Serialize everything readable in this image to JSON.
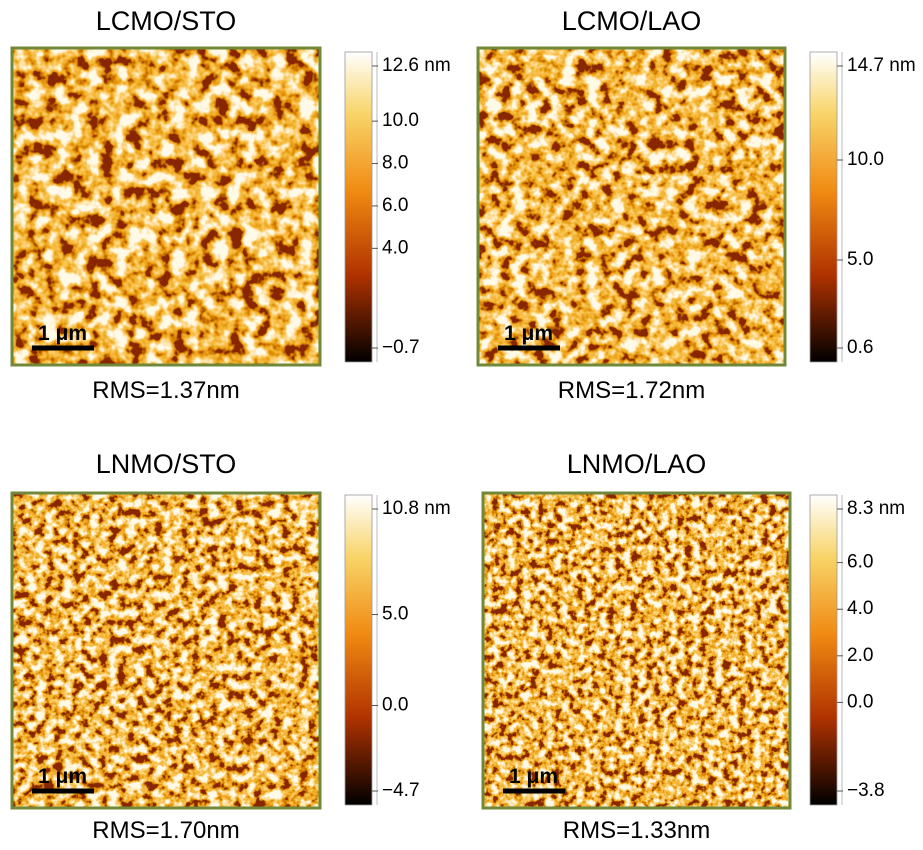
{
  "panels": [
    {
      "title": "LCMO/STO",
      "scale_bar": "1 μm",
      "rms": "RMS=1.37nm",
      "colorbar": {
        "lim": [
          -0.7,
          12.6
        ],
        "ticks": [
          {
            "value": -0.7,
            "label": "−0.7"
          },
          {
            "value": 4,
            "label": "4.0"
          },
          {
            "value": 6,
            "label": "6.0"
          },
          {
            "value": 8,
            "label": "8.0"
          },
          {
            "value": 10,
            "label": "10.0"
          },
          {
            "value": 12.6,
            "label": "12.6 nm"
          }
        ]
      }
    },
    {
      "title": "LCMO/LAO",
      "scale_bar": "1 μm",
      "rms": "RMS=1.72nm",
      "colorbar": {
        "lim": [
          0.6,
          14.7
        ],
        "ticks": [
          {
            "value": 0.6,
            "label": "0.6"
          },
          {
            "value": 5,
            "label": "5.0"
          },
          {
            "value": 10,
            "label": "10.0"
          },
          {
            "value": 14.7,
            "label": "14.7 nm"
          }
        ]
      }
    },
    {
      "title": "LNMO/STO",
      "scale_bar": "1 μm",
      "rms": "RMS=1.70nm",
      "colorbar": {
        "lim": [
          -4.7,
          10.8
        ],
        "ticks": [
          {
            "value": -4.7,
            "label": "−4.7"
          },
          {
            "value": 0,
            "label": "0.0"
          },
          {
            "value": 5,
            "label": "5.0"
          },
          {
            "value": 10.8,
            "label": "10.8 nm"
          }
        ]
      }
    },
    {
      "title": "LNMO/LAO",
      "scale_bar": "1 μm",
      "rms": "RMS=1.33nm",
      "colorbar": {
        "lim": [
          -3.8,
          8.3
        ],
        "ticks": [
          {
            "value": -3.8,
            "label": "−3.8"
          },
          {
            "value": 0,
            "label": "0.0"
          },
          {
            "value": 2,
            "label": "2.0"
          },
          {
            "value": 4,
            "label": "4.0"
          },
          {
            "value": 6,
            "label": "6.0"
          },
          {
            "value": 8.3,
            "label": "8.3 nm"
          }
        ]
      }
    }
  ]
}
